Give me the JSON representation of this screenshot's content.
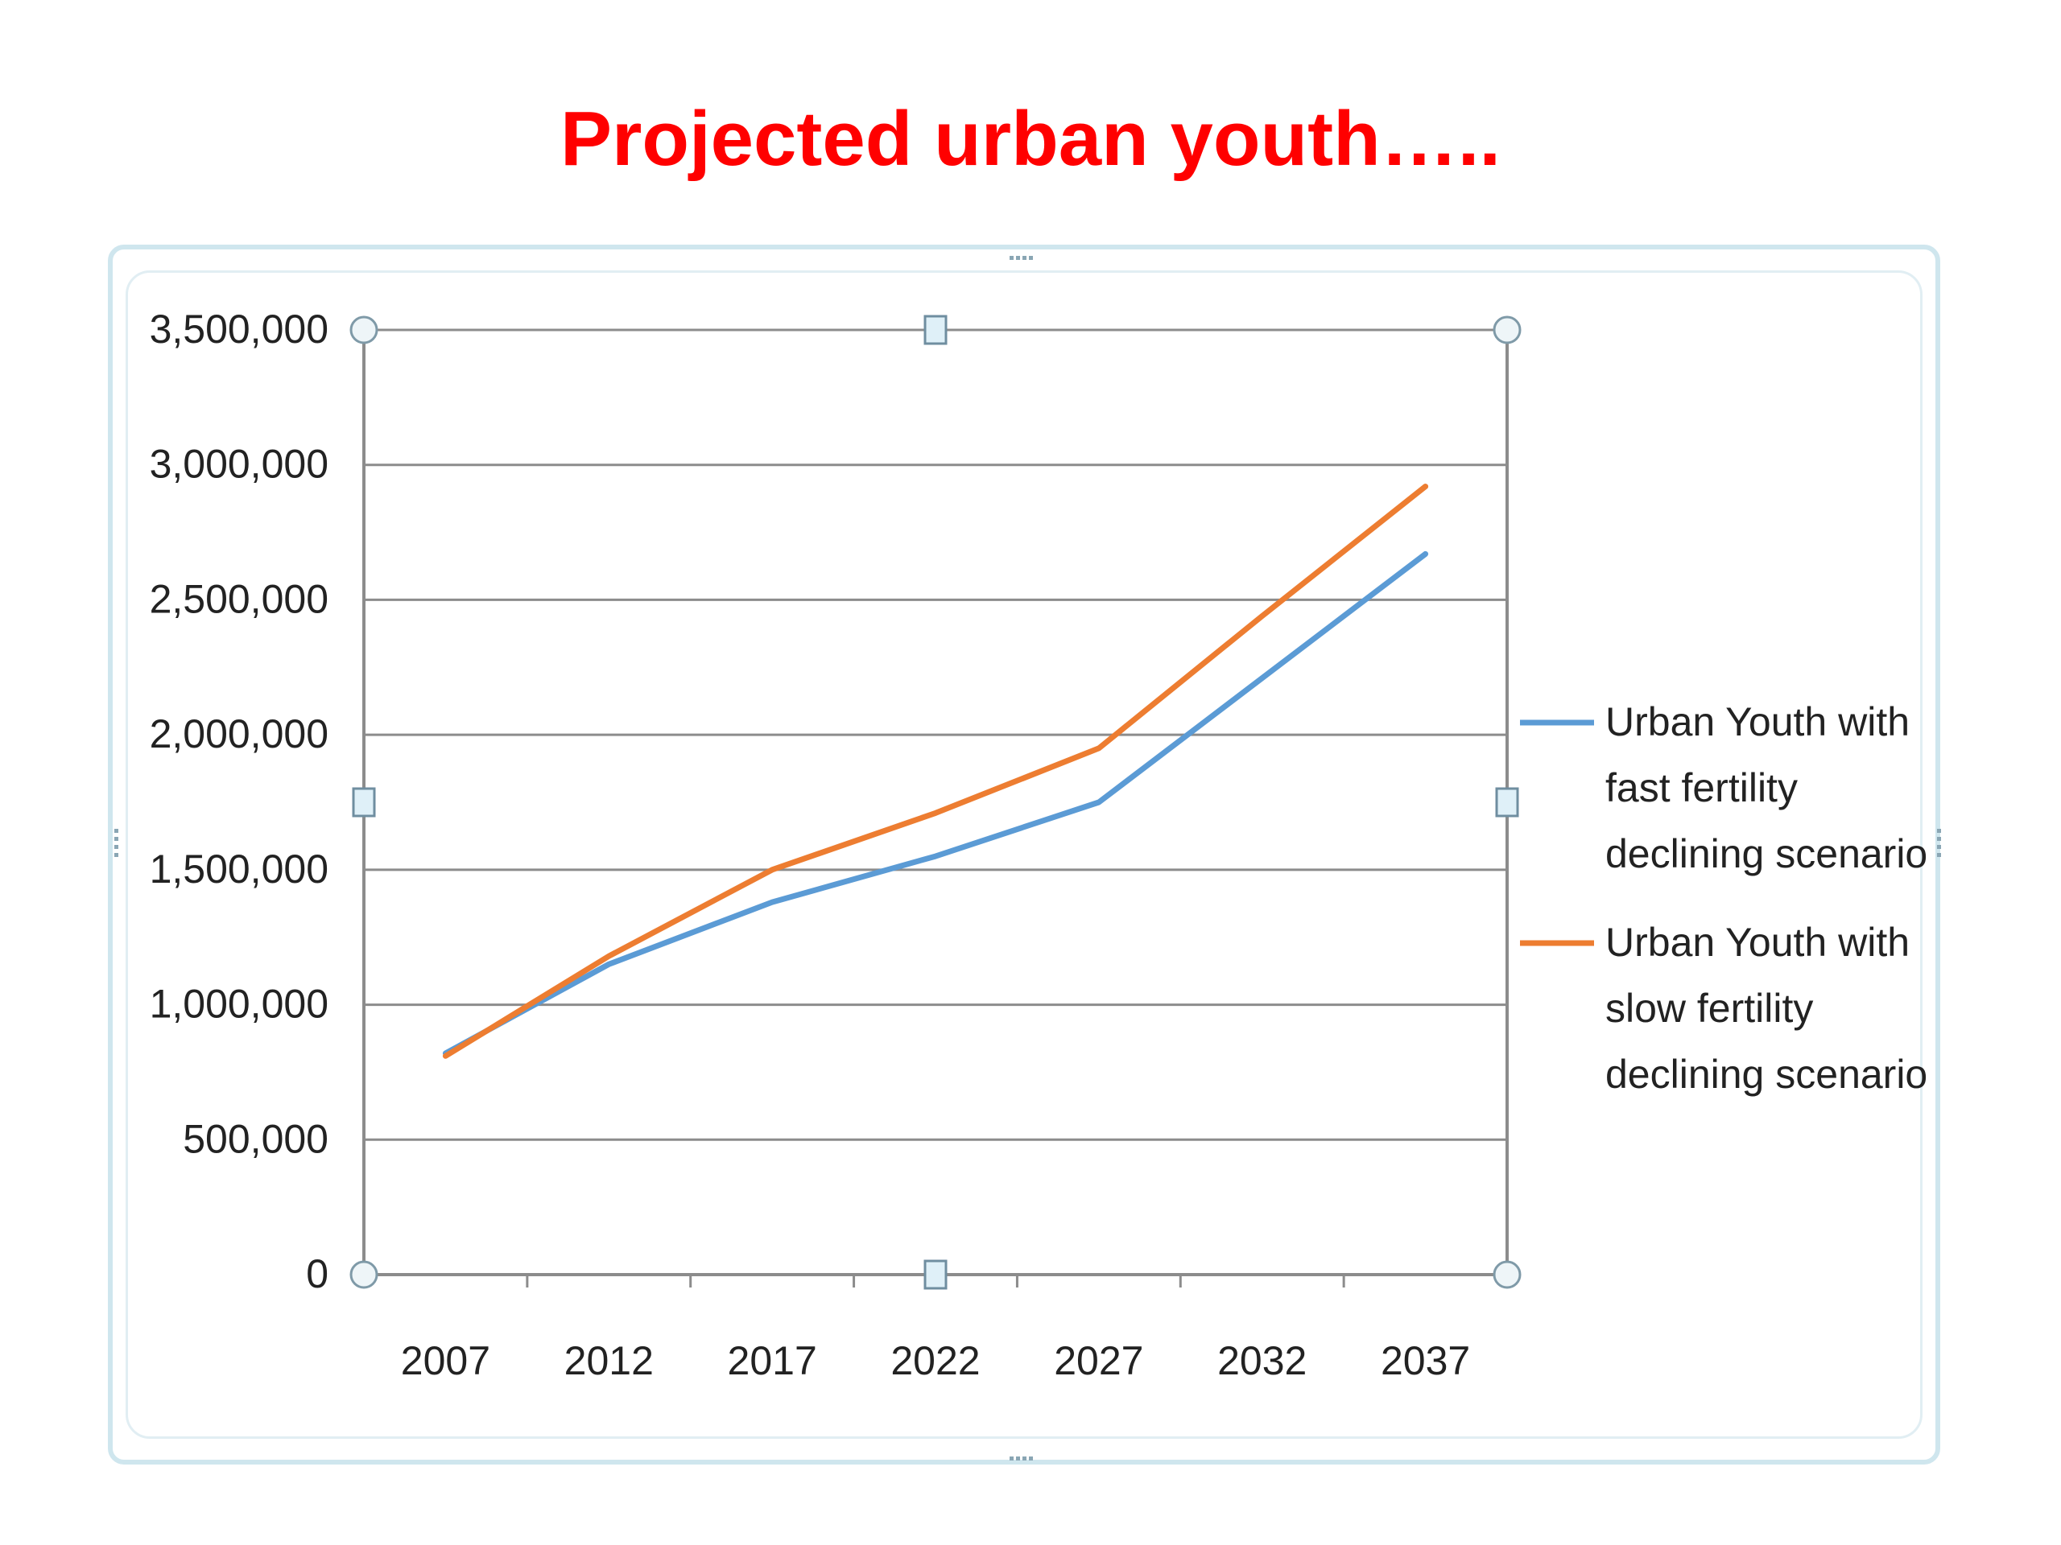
{
  "slide": {
    "title": "Projected urban youth….."
  },
  "chart_data": {
    "type": "line",
    "categories": [
      "2007",
      "2012",
      "2017",
      "2022",
      "2027",
      "2032",
      "2037"
    ],
    "ylim": [
      0,
      3500000
    ],
    "yticks": [
      0,
      500000,
      1000000,
      1500000,
      2000000,
      2500000,
      3000000,
      3500000
    ],
    "ytick_labels": [
      "0",
      "500,000",
      "1,000,000",
      "1,500,000",
      "2,000,000",
      "2,500,000",
      "3,000,000",
      "3,500,000"
    ],
    "grid": true,
    "legend_position": "right",
    "series": [
      {
        "name": "Urban Youth with fast fertility declining scenario",
        "legend_lines": [
          "Urban Youth with",
          "fast fertility",
          "declining scenario"
        ],
        "color": "#5b9bd5",
        "values": [
          820000,
          1150000,
          1380000,
          1550000,
          1750000,
          2210000,
          2670000
        ]
      },
      {
        "name": "Urban Youth with slow fertility declining scenario",
        "legend_lines": [
          "Urban Youth with",
          "slow fertility",
          "declining scenario"
        ],
        "color": "#ed7d31",
        "values": [
          810000,
          1180000,
          1500000,
          1710000,
          1950000,
          2440000,
          2920000
        ]
      }
    ]
  }
}
